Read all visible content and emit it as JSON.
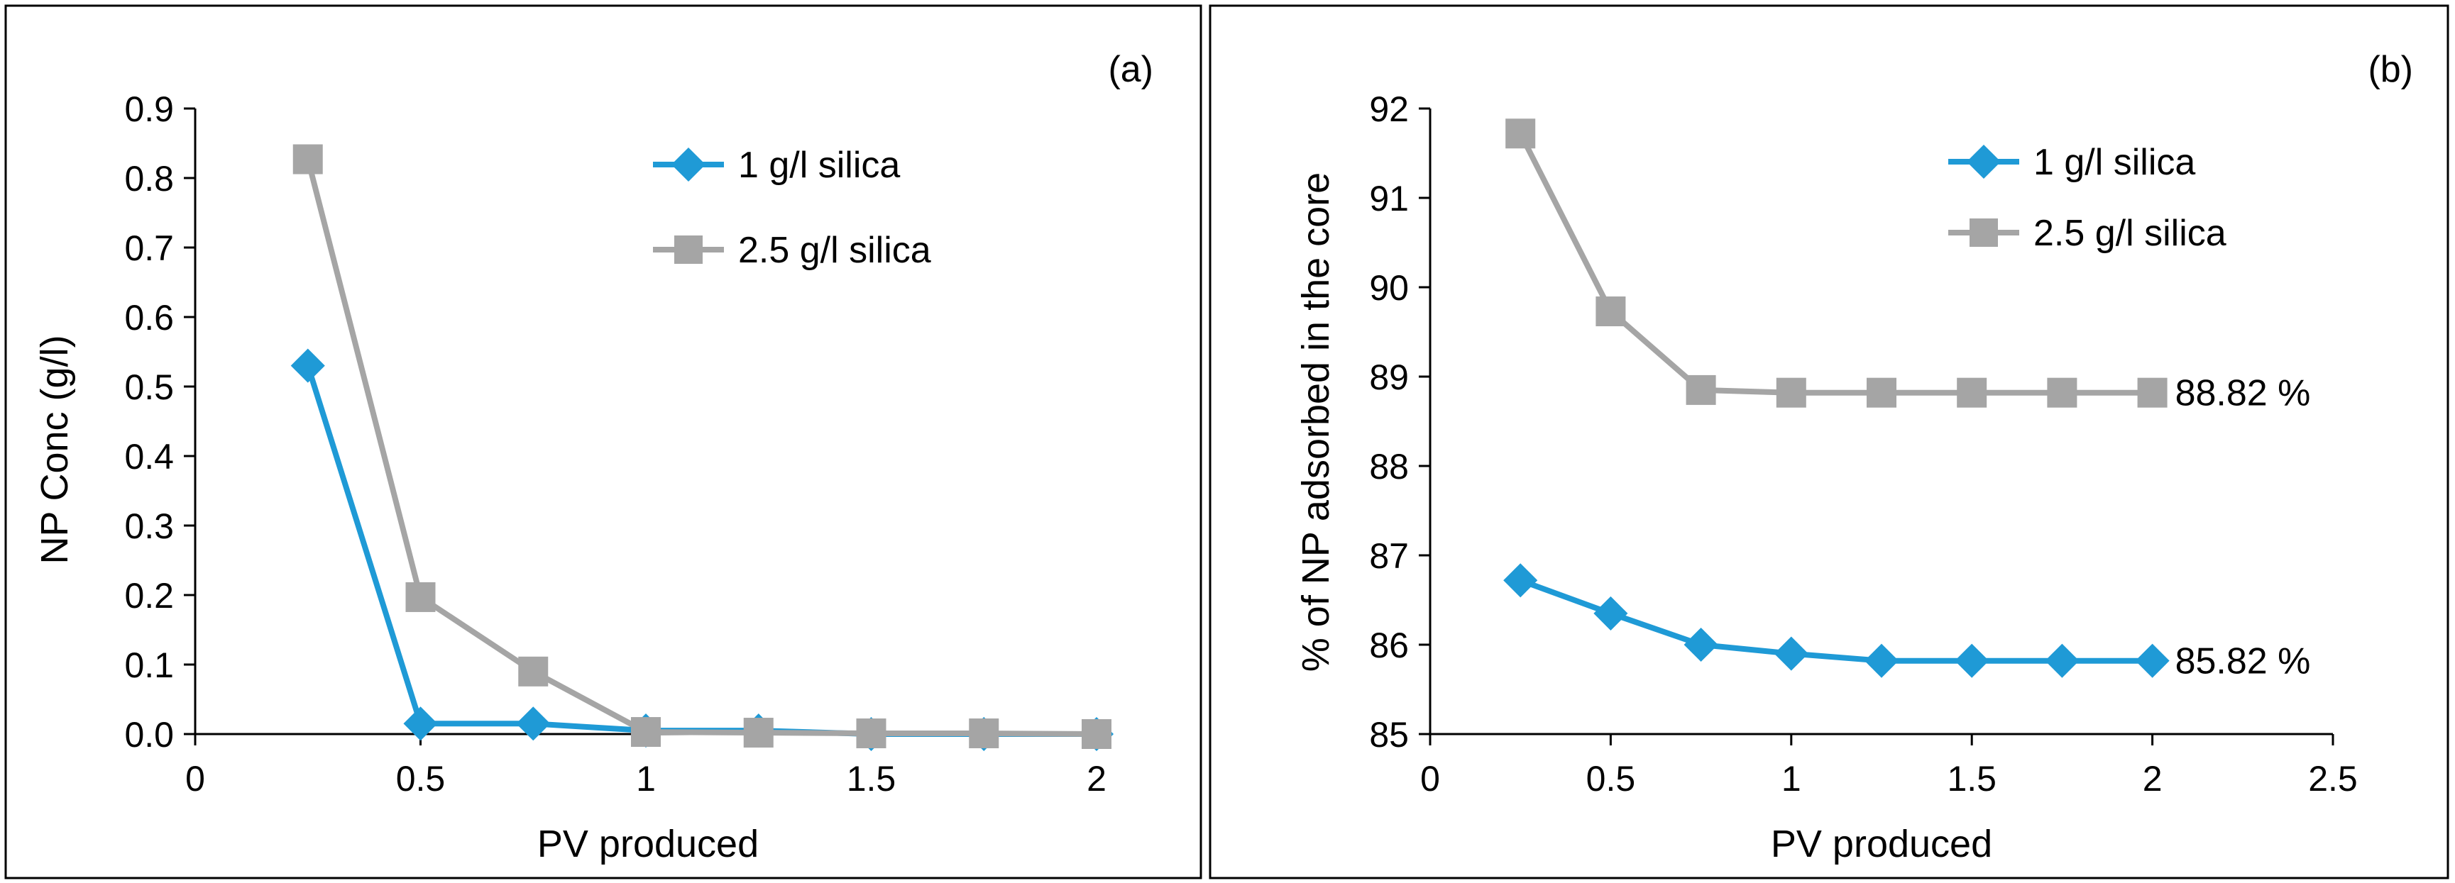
{
  "colors": {
    "series_blue": "#1f9ad6",
    "series_gray": "#a5a5a5",
    "axis": "#000000",
    "frame": "#000000"
  },
  "chart_data": [
    {
      "type": "line",
      "panel_label": "(a)",
      "title": "",
      "xlabel": "PV produced",
      "ylabel": "NP Conc (g/l)",
      "xlim": [
        0,
        2
      ],
      "ylim": [
        0,
        0.9
      ],
      "xticks": [
        0,
        0.5,
        1,
        1.5,
        2
      ],
      "xtick_labels": [
        "0",
        "0.5",
        "1",
        "1.5",
        "2"
      ],
      "yticks": [
        0,
        0.1,
        0.2,
        0.3,
        0.4,
        0.5,
        0.6,
        0.7,
        0.8,
        0.9
      ],
      "ytick_labels": [
        "0.0",
        "0.1",
        "0.2",
        "0.3",
        "0.4",
        "0.5",
        "0.6",
        "0.7",
        "0.8",
        "0.9"
      ],
      "grid": false,
      "legend_position": "top-right",
      "series": [
        {
          "name": "1 g/l silica",
          "marker": "diamond",
          "color": "#1f9ad6",
          "x": [
            0.25,
            0.5,
            0.75,
            1,
            1.25,
            1.5,
            1.75,
            2
          ],
          "y": [
            0.53,
            0.015,
            0.015,
            0.005,
            0.005,
            0,
            0,
            0
          ]
        },
        {
          "name": "2.5 g/l silica",
          "marker": "square",
          "color": "#a5a5a5",
          "x": [
            0.25,
            0.5,
            0.75,
            1,
            1.25,
            1.5,
            1.75,
            2
          ],
          "y": [
            0.827,
            0.197,
            0.09,
            0.003,
            0.002,
            0.001,
            0.001,
            0
          ]
        }
      ],
      "annotations": []
    },
    {
      "type": "line",
      "panel_label": "(b)",
      "title": "",
      "xlabel": "PV produced",
      "ylabel": "% of NP adsorbed in the core",
      "xlim": [
        0,
        2.5
      ],
      "ylim": [
        85,
        92
      ],
      "xticks": [
        0,
        0.5,
        1,
        1.5,
        2,
        2.5
      ],
      "xtick_labels": [
        "0",
        "0.5",
        "1",
        "1.5",
        "2",
        "2.5"
      ],
      "yticks": [
        85,
        86,
        87,
        88,
        89,
        90,
        91,
        92
      ],
      "ytick_labels": [
        "85",
        "86",
        "87",
        "88",
        "89",
        "90",
        "91",
        "92"
      ],
      "grid": false,
      "legend_position": "top-right",
      "series": [
        {
          "name": "1 g/l silica",
          "marker": "diamond",
          "color": "#1f9ad6",
          "x": [
            0.25,
            0.5,
            0.75,
            1,
            1.25,
            1.5,
            1.75,
            2
          ],
          "y": [
            86.72,
            86.35,
            86.0,
            85.9,
            85.82,
            85.82,
            85.82,
            85.82
          ]
        },
        {
          "name": "2.5 g/l silica",
          "marker": "square",
          "color": "#a5a5a5",
          "x": [
            0.25,
            0.5,
            0.75,
            1,
            1.25,
            1.5,
            1.75,
            2
          ],
          "y": [
            91.72,
            89.73,
            88.85,
            88.82,
            88.82,
            88.82,
            88.82,
            88.82
          ]
        }
      ],
      "annotations": [
        {
          "text": "88.82 %",
          "series": "2.5 g/l silica",
          "x": 2,
          "y": 88.82
        },
        {
          "text": "85.82 %",
          "series": "1 g/l silica",
          "x": 2,
          "y": 85.82
        }
      ]
    }
  ]
}
